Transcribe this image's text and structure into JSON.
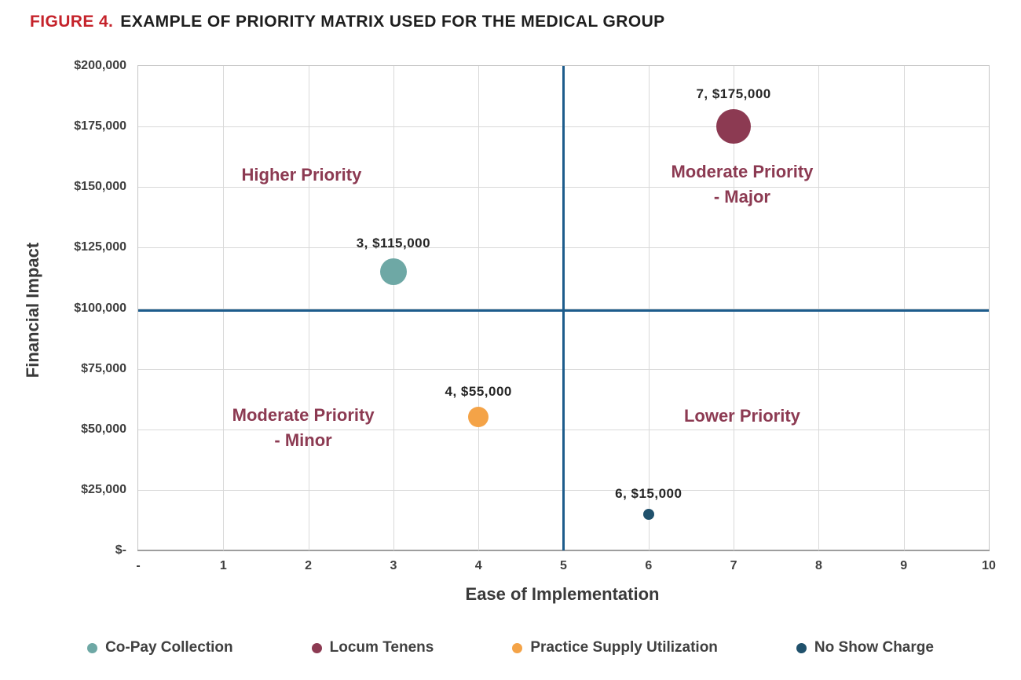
{
  "figure": {
    "title_prefix": "FIGURE 4.",
    "title_text": "EXAMPLE OF PRIORITY MATRIX USED FOR THE MEDICAL GROUP",
    "title_prefix_color": "#C5232B"
  },
  "chart_data": {
    "type": "scatter",
    "title": "FIGURE 4. EXAMPLE OF PRIORITY MATRIX USED FOR THE MEDICAL GROUP",
    "xlabel": "Ease of Implementation",
    "ylabel": "Financial Impact",
    "xlim": [
      0,
      10
    ],
    "ylim": [
      0,
      200000
    ],
    "grid": true,
    "gridline_color": "#D9D9D9",
    "plot_border_color": "#C6C6C6",
    "x_ticks": [
      {
        "value": 0,
        "label": "-"
      },
      {
        "value": 1,
        "label": "1"
      },
      {
        "value": 2,
        "label": "2"
      },
      {
        "value": 3,
        "label": "3"
      },
      {
        "value": 4,
        "label": "4"
      },
      {
        "value": 5,
        "label": "5"
      },
      {
        "value": 6,
        "label": "6"
      },
      {
        "value": 7,
        "label": "7"
      },
      {
        "value": 8,
        "label": "8"
      },
      {
        "value": 9,
        "label": "9"
      },
      {
        "value": 10,
        "label": "10"
      }
    ],
    "y_ticks": [
      {
        "value": 200000,
        "label": "$200,000"
      },
      {
        "value": 175000,
        "label": "$175,000"
      },
      {
        "value": 150000,
        "label": "$150,000"
      },
      {
        "value": 125000,
        "label": "$125,000"
      },
      {
        "value": 100000,
        "label": "$100,000"
      },
      {
        "value": 75000,
        "label": "$75,000"
      },
      {
        "value": 50000,
        "label": "$50,000"
      },
      {
        "value": 25000,
        "label": "$25,000"
      },
      {
        "value": 0,
        "label": "$-"
      }
    ],
    "quadrant_divider": {
      "x": 5,
      "y": 98900,
      "color": "#1D5C8C"
    },
    "quadrant_label_color": "#8C3A52",
    "quadrant_labels": [
      {
        "lines": [
          "Higher Priority"
        ],
        "x": 1.92,
        "y": 155000
      },
      {
        "lines": [
          "Moderate Priority",
          "- Major"
        ],
        "x": 7.1,
        "y": 151000
      },
      {
        "lines": [
          "Moderate Priority",
          "- Minor"
        ],
        "x": 1.94,
        "y": 50500
      },
      {
        "lines": [
          "Lower Priority"
        ],
        "x": 7.1,
        "y": 55500
      }
    ],
    "points": [
      {
        "name": "Co-Pay Collection",
        "x": 3,
        "y": 115000,
        "label": "3, $115,000",
        "color": "#6EA8A5",
        "radius": 17
      },
      {
        "name": "Locum Tenens",
        "x": 7,
        "y": 175000,
        "label": "7, $175,000",
        "color": "#8C3A52",
        "radius": 22
      },
      {
        "name": "Practice Supply Utilization",
        "x": 4,
        "y": 55000,
        "label": "4, $55,000",
        "color": "#F4A347",
        "radius": 13
      },
      {
        "name": "No Show Charge",
        "x": 6,
        "y": 15000,
        "label": "6, $15,000",
        "color": "#20516C",
        "radius": 7
      }
    ],
    "legend": {
      "position": "bottom",
      "items": [
        {
          "label": "Co-Pay Collection",
          "color": "#6EA8A5"
        },
        {
          "label": "Locum Tenens",
          "color": "#8C3A52"
        },
        {
          "label": "Practice Supply Utilization",
          "color": "#F4A347"
        },
        {
          "label": "No Show Charge",
          "color": "#20516C"
        }
      ]
    }
  }
}
